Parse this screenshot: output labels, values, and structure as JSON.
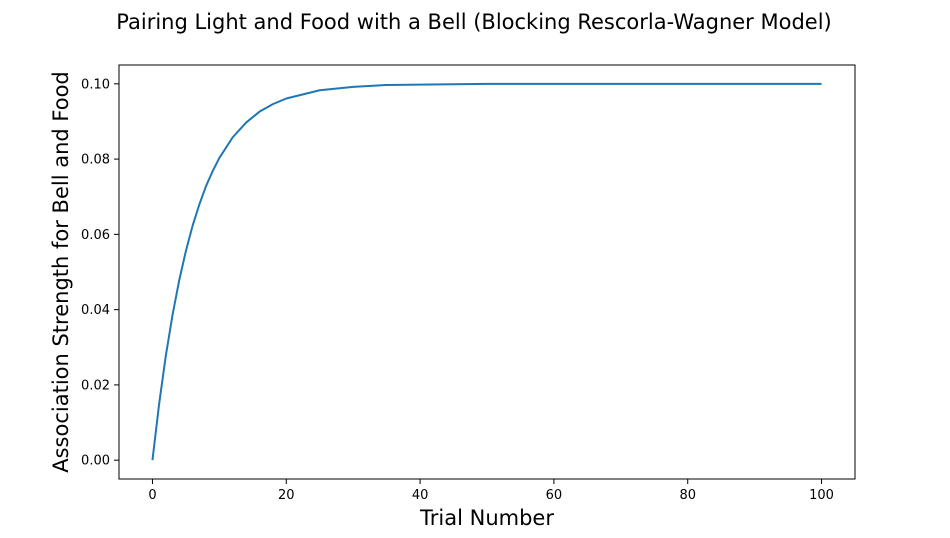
{
  "chart_data": {
    "type": "line",
    "title": "Pairing Light and Food with a Bell (Blocking Rescorla-Wagner Model)",
    "xlabel": "Trial Number",
    "ylabel": "Association Strength for Bell and Food",
    "xlim": [
      -5,
      105
    ],
    "ylim": [
      -0.005,
      0.105
    ],
    "xticks": [
      0,
      20,
      40,
      60,
      80,
      100
    ],
    "yticks": [
      0.0,
      0.02,
      0.04,
      0.06,
      0.08,
      0.1
    ],
    "xtick_labels": [
      "0",
      "20",
      "40",
      "60",
      "80",
      "100"
    ],
    "ytick_labels": [
      "0.00",
      "0.02",
      "0.04",
      "0.06",
      "0.08",
      "0.10"
    ],
    "grid": false,
    "legend": "none",
    "series": [
      {
        "color": "#1f77b4",
        "x": [
          0,
          1,
          2,
          3,
          4,
          5,
          6,
          7,
          8,
          9,
          10,
          12,
          14,
          16,
          18,
          20,
          25,
          30,
          35,
          40,
          50,
          60,
          70,
          80,
          90,
          100
        ],
        "y": [
          0.0,
          0.015,
          0.0278,
          0.0386,
          0.0478,
          0.0556,
          0.0623,
          0.0679,
          0.0728,
          0.0768,
          0.0803,
          0.0858,
          0.0897,
          0.0926,
          0.0946,
          0.0961,
          0.0983,
          0.0992,
          0.0997,
          0.0998,
          0.1,
          0.1,
          0.1,
          0.1,
          0.1,
          0.1
        ]
      }
    ]
  }
}
